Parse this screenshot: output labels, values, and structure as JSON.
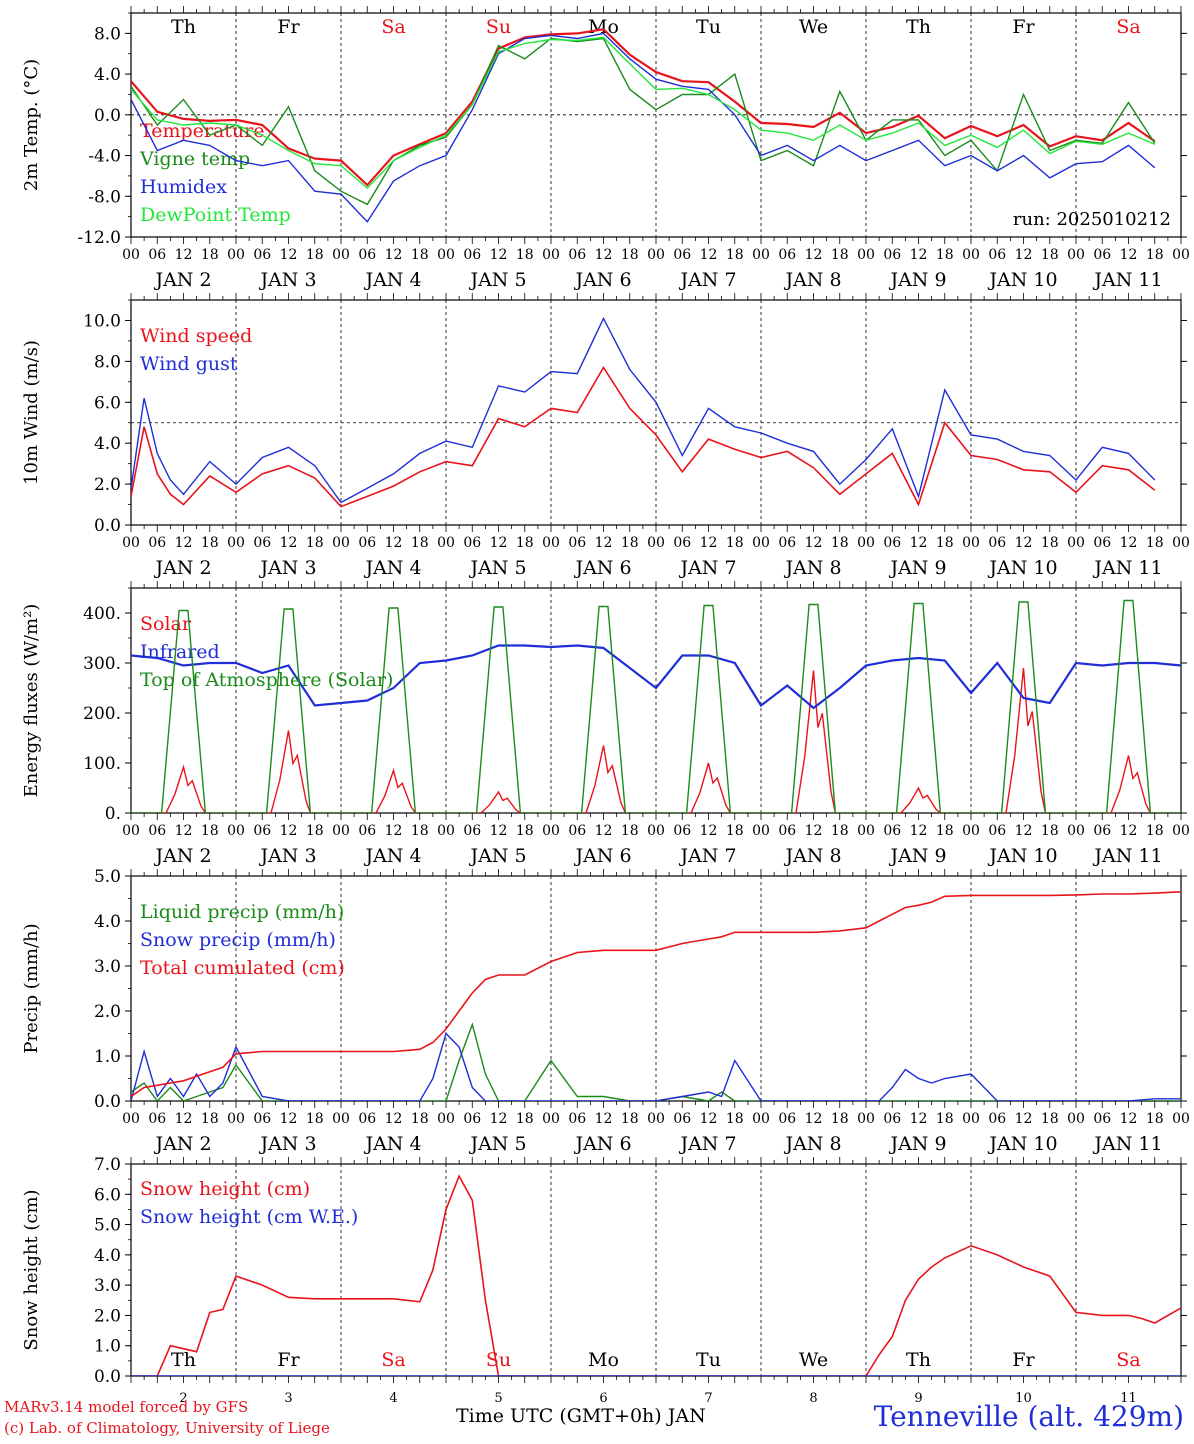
{
  "chart_data": [
    {
      "type": "line",
      "ylabel": "2m Temp. (°C)",
      "ylim": [
        -12,
        10
      ],
      "yticks": [
        "-12.0",
        "-8.0",
        "-4.0",
        "0.0",
        "4.0",
        "8.0"
      ],
      "ytick_values": [
        -12,
        -8,
        -4,
        0,
        4,
        8
      ],
      "ref_line": 0,
      "run_label": "run: 2025010212",
      "x_hours": [
        0,
        6,
        12,
        18,
        24,
        30,
        36,
        42,
        48,
        54,
        60,
        66,
        72,
        78,
        84,
        90,
        96,
        102,
        108,
        114,
        120,
        126,
        132,
        138,
        144,
        150,
        156,
        162,
        168,
        174,
        180,
        186,
        192,
        198,
        204,
        210,
        216,
        222,
        228,
        234
      ],
      "series": [
        {
          "name": "Temperature",
          "color": "#e8141c",
          "width": 2.2,
          "values": [
            3.3,
            0.3,
            -0.4,
            -0.6,
            -0.5,
            -1.0,
            -3.3,
            -4.3,
            -4.5,
            -6.9,
            -4.0,
            -2.9,
            -1.8,
            1.3,
            6.5,
            7.6,
            7.9,
            8.0,
            8.4,
            5.9,
            4.2,
            3.3,
            3.2,
            1.3,
            -0.8,
            -0.9,
            -1.2,
            0.2,
            -1.8,
            -1.2,
            -0.1,
            -2.3,
            -1.1,
            -2.1,
            -1.0,
            -3.1,
            -2.1,
            -2.5,
            -0.8,
            -2.6
          ]
        },
        {
          "name": "Vigne temp",
          "color": "#1b8b1b",
          "width": 1.4,
          "values": [
            2.8,
            -1.0,
            1.5,
            -2.0,
            -1.0,
            -3.0,
            0.8,
            -5.5,
            -7.5,
            -8.8,
            -4.5,
            -3.0,
            -2.2,
            1.0,
            6.8,
            5.5,
            7.5,
            7.2,
            7.5,
            2.5,
            0.5,
            2.0,
            2.0,
            4.0,
            -4.5,
            -3.5,
            -5.0,
            2.3,
            -2.5,
            -0.5,
            -0.5,
            -4.0,
            -2.5,
            -5.5,
            2.0,
            -3.5,
            -2.5,
            -2.8,
            1.2,
            -2.8
          ]
        },
        {
          "name": "Humidex",
          "color": "#1f2ed6",
          "width": 1.4,
          "values": [
            1.5,
            -3.5,
            -2.5,
            -3.0,
            -4.5,
            -5.0,
            -4.5,
            -7.5,
            -7.8,
            -10.5,
            -6.5,
            -5.0,
            -4.0,
            0.5,
            6.0,
            7.5,
            7.8,
            7.5,
            8.0,
            5.5,
            3.5,
            2.8,
            2.5,
            0.0,
            -4.0,
            -3.0,
            -4.5,
            -3.0,
            -4.5,
            -3.5,
            -2.5,
            -5.0,
            -4.0,
            -5.5,
            -4.0,
            -6.2,
            -4.8,
            -4.6,
            -3.0,
            -5.2
          ]
        },
        {
          "name": "DewPoint Temp",
          "color": "#22e63a",
          "width": 1.4,
          "values": [
            2.5,
            -0.5,
            -1.0,
            -0.8,
            -1.0,
            -2.0,
            -3.5,
            -4.8,
            -5.0,
            -7.2,
            -4.5,
            -3.2,
            -2.0,
            1.0,
            6.2,
            7.0,
            7.4,
            7.3,
            7.6,
            5.0,
            2.5,
            2.6,
            2.0,
            0.5,
            -1.5,
            -1.8,
            -2.5,
            -1.0,
            -2.5,
            -1.8,
            -0.8,
            -3.0,
            -2.0,
            -3.2,
            -1.5,
            -3.8,
            -2.6,
            -2.9,
            -1.8,
            -2.9
          ]
        }
      ]
    },
    {
      "type": "line",
      "ylabel": "10m Wind (m/s)",
      "ylim": [
        0,
        11
      ],
      "yticks": [
        "0.0",
        "2.0",
        "4.0",
        "6.0",
        "8.0",
        "10.0"
      ],
      "ytick_values": [
        0,
        2,
        4,
        6,
        8,
        10
      ],
      "ref_line": 5,
      "x_hours": [
        0,
        3,
        6,
        9,
        12,
        18,
        24,
        30,
        36,
        42,
        48,
        54,
        60,
        66,
        72,
        78,
        84,
        90,
        96,
        102,
        108,
        114,
        120,
        126,
        132,
        138,
        144,
        150,
        156,
        162,
        168,
        174,
        180,
        186,
        192,
        198,
        204,
        210,
        216,
        222,
        228,
        234
      ],
      "series": [
        {
          "name": "Wind speed",
          "color": "#e8141c",
          "width": 1.6,
          "values": [
            1.4,
            4.8,
            2.5,
            1.5,
            1.0,
            2.4,
            1.6,
            2.5,
            2.9,
            2.3,
            0.9,
            1.4,
            1.9,
            2.6,
            3.1,
            2.9,
            5.2,
            4.8,
            5.7,
            5.5,
            7.7,
            5.7,
            4.4,
            2.6,
            4.2,
            3.7,
            3.3,
            3.6,
            2.8,
            1.5,
            2.5,
            3.5,
            1.0,
            5.0,
            3.4,
            3.2,
            2.7,
            2.6,
            1.6,
            2.9,
            2.7,
            1.7
          ]
        },
        {
          "name": "Wind gust",
          "color": "#1f2ed6",
          "width": 1.4,
          "values": [
            1.8,
            6.2,
            3.5,
            2.2,
            1.5,
            3.1,
            2.0,
            3.3,
            3.8,
            2.9,
            1.1,
            1.8,
            2.5,
            3.5,
            4.1,
            3.8,
            6.8,
            6.5,
            7.5,
            7.4,
            10.1,
            7.6,
            6.0,
            3.4,
            5.7,
            4.8,
            4.5,
            4.0,
            3.6,
            2.0,
            3.2,
            4.7,
            1.4,
            6.6,
            4.4,
            4.2,
            3.6,
            3.4,
            2.2,
            3.8,
            3.5,
            2.2
          ]
        }
      ]
    },
    {
      "type": "line",
      "ylabel": "Energy fluxes (W/m²)",
      "ylim": [
        0,
        450
      ],
      "yticks": [
        "0.",
        "100.",
        "200.",
        "300.",
        "400."
      ],
      "ytick_values": [
        0,
        100,
        200,
        300,
        400
      ],
      "diurnal_peaks_toa": [
        405,
        408,
        410,
        412,
        413,
        415,
        417,
        419,
        422,
        425,
        428
      ],
      "diurnal_peaks_solar": [
        92,
        165,
        85,
        42,
        135,
        100,
        285,
        50,
        290,
        115
      ],
      "series": [
        {
          "name": "Solar",
          "color": "#e8141c",
          "width": 1.4
        },
        {
          "name": "Infrared",
          "color": "#1f2ed6",
          "width": 2.2,
          "x_hours": [
            0,
            6,
            12,
            18,
            24,
            30,
            36,
            42,
            48,
            54,
            60,
            66,
            72,
            78,
            84,
            90,
            96,
            102,
            108,
            114,
            120,
            126,
            132,
            138,
            144,
            150,
            156,
            162,
            168,
            174,
            180,
            186,
            192,
            198,
            204,
            210,
            216,
            222,
            228,
            234,
            240
          ],
          "values": [
            315,
            310,
            295,
            300,
            300,
            280,
            295,
            215,
            220,
            225,
            250,
            300,
            305,
            315,
            335,
            335,
            332,
            335,
            330,
            290,
            250,
            315,
            315,
            300,
            215,
            255,
            210,
            250,
            295,
            305,
            310,
            305,
            240,
            300,
            230,
            220,
            300,
            295,
            300,
            300,
            295
          ]
        },
        {
          "name": "Top of Atmosphere (Solar)",
          "color": "#1b8b1b",
          "width": 1.4
        }
      ]
    },
    {
      "type": "line",
      "ylabel": "Precip (mm/h)",
      "ylim": [
        0,
        5
      ],
      "yticks": [
        "0.0",
        "1.0",
        "2.0",
        "3.0",
        "4.0",
        "5.0"
      ],
      "ytick_values": [
        0,
        1,
        2,
        3,
        4,
        5
      ],
      "x_hours": [
        0,
        3,
        6,
        9,
        12,
        15,
        18,
        21,
        24,
        30,
        36,
        42,
        48,
        54,
        60,
        66,
        69,
        72,
        75,
        78,
        81,
        84,
        90,
        96,
        102,
        108,
        114,
        120,
        126,
        132,
        135,
        138,
        144,
        150,
        156,
        162,
        168,
        171,
        174,
        177,
        180,
        183,
        186,
        192,
        198,
        204,
        210,
        216,
        222,
        228,
        234,
        240
      ],
      "series": [
        {
          "name": "Liquid precip (mm/h)",
          "color": "#1b8b1b",
          "width": 1.4,
          "values": [
            0.2,
            0.4,
            0.0,
            0.3,
            0.0,
            0.1,
            0.2,
            0.3,
            0.8,
            0.0,
            0.0,
            0.0,
            0.0,
            0.0,
            0.0,
            0.0,
            0.0,
            0.0,
            0.9,
            1.7,
            0.6,
            0.0,
            0.0,
            0.9,
            0.1,
            0.1,
            0.0,
            0.0,
            0.1,
            0.0,
            0.2,
            0.0,
            0.0,
            0.0,
            0.0,
            0.0,
            0.0,
            0.0,
            0.0,
            0.0,
            0.0,
            0.0,
            0.0,
            0.0,
            0.0,
            0.0,
            0.0,
            0.0,
            0.0,
            0.0,
            0.0,
            0.0
          ]
        },
        {
          "name": "Snow precip (mm/h)",
          "color": "#1f2ed6",
          "width": 1.4,
          "values": [
            0.0,
            1.1,
            0.1,
            0.5,
            0.1,
            0.6,
            0.1,
            0.4,
            1.2,
            0.1,
            0.0,
            0.0,
            0.0,
            0.0,
            0.0,
            0.0,
            0.5,
            1.5,
            1.2,
            0.3,
            0.0,
            0.0,
            0.0,
            0.0,
            0.0,
            0.0,
            0.0,
            0.0,
            0.1,
            0.2,
            0.1,
            0.9,
            0.0,
            0.0,
            0.0,
            0.0,
            0.0,
            0.0,
            0.3,
            0.7,
            0.5,
            0.4,
            0.5,
            0.6,
            0.0,
            0.0,
            0.0,
            0.0,
            0.0,
            0.0,
            0.05,
            0.05
          ]
        },
        {
          "name": "Total cumulated (cm)",
          "color": "#e8141c",
          "width": 1.6,
          "values": [
            0.1,
            0.3,
            0.35,
            0.4,
            0.45,
            0.55,
            0.65,
            0.75,
            1.05,
            1.1,
            1.1,
            1.1,
            1.1,
            1.1,
            1.1,
            1.15,
            1.3,
            1.6,
            2.0,
            2.4,
            2.7,
            2.8,
            2.8,
            3.1,
            3.3,
            3.35,
            3.35,
            3.35,
            3.5,
            3.6,
            3.65,
            3.75,
            3.75,
            3.75,
            3.75,
            3.78,
            3.85,
            4.0,
            4.15,
            4.3,
            4.35,
            4.42,
            4.55,
            4.57,
            4.57,
            4.57,
            4.57,
            4.58,
            4.6,
            4.6,
            4.62,
            4.65
          ]
        }
      ]
    },
    {
      "type": "line",
      "ylabel": "Snow height (cm)",
      "ylim": [
        0,
        7
      ],
      "yticks": [
        "0.0",
        "1.0",
        "2.0",
        "3.0",
        "4.0",
        "5.0",
        "6.0",
        "7.0"
      ],
      "ytick_values": [
        0,
        1,
        2,
        3,
        4,
        5,
        6,
        7
      ],
      "x_hours": [
        0,
        3,
        6,
        9,
        12,
        15,
        18,
        21,
        24,
        30,
        36,
        42,
        48,
        54,
        60,
        66,
        69,
        72,
        75,
        78,
        81,
        84,
        90,
        96,
        102,
        108,
        114,
        120,
        126,
        132,
        138,
        144,
        150,
        156,
        162,
        168,
        171,
        174,
        177,
        180,
        183,
        186,
        192,
        198,
        204,
        210,
        216,
        222,
        228,
        231,
        234,
        240
      ],
      "series": [
        {
          "name": "Snow height (cm)",
          "color": "#e8141c",
          "width": 1.6,
          "values": [
            0.0,
            0.0,
            0.0,
            1.0,
            0.9,
            0.8,
            2.1,
            2.2,
            3.3,
            3.0,
            2.6,
            2.55,
            2.55,
            2.55,
            2.55,
            2.45,
            3.5,
            5.5,
            6.6,
            5.8,
            2.5,
            0.0,
            0.0,
            0.0,
            0.0,
            0.0,
            0.0,
            0.0,
            0.0,
            0.0,
            0.0,
            0.0,
            0.0,
            0.0,
            0.0,
            0.0,
            0.7,
            1.3,
            2.5,
            3.2,
            3.6,
            3.9,
            4.3,
            4.0,
            3.6,
            3.3,
            2.1,
            2.0,
            2.0,
            1.9,
            1.75,
            2.25
          ]
        },
        {
          "name": "Snow height (cm W.E.)",
          "color": "#1f2ed6",
          "width": 1.4,
          "values": [
            0,
            0,
            0,
            0,
            0,
            0,
            0,
            0,
            0,
            0,
            0,
            0,
            0,
            0,
            0,
            0,
            0,
            0,
            0,
            0,
            0,
            0,
            0,
            0,
            0,
            0,
            0,
            0,
            0,
            0,
            0,
            0,
            0,
            0,
            0,
            0,
            0,
            0,
            0,
            0,
            0,
            0,
            0,
            0,
            0,
            0,
            0,
            0,
            0,
            0,
            0,
            0
          ]
        }
      ]
    }
  ],
  "days": [
    "Th",
    "Fr",
    "Sa",
    "Su",
    "Mo",
    "Tu",
    "We",
    "Th",
    "Fr",
    "Sa"
  ],
  "weekend_color": "#e8141c",
  "weekend_days": [
    "Sa",
    "Su"
  ],
  "hour_ticks": [
    "00",
    "06",
    "12",
    "18"
  ],
  "date_labels": [
    "JAN  2",
    "JAN  3",
    "JAN  4",
    "JAN  5",
    "JAN  6",
    "JAN  7",
    "JAN  8",
    "JAN  9",
    "JAN 10",
    "JAN 11"
  ],
  "bottom_day_numbers": [
    "2",
    "3",
    "4",
    "5",
    "6",
    "7",
    "8",
    "9",
    "10",
    "11"
  ],
  "x_title": "Time UTC (GMT+0h) JAN",
  "footer": {
    "model": "MARv3.14 model forced by GFS",
    "lab": "(c) Lab. of Climatology, University of Liege"
  },
  "station": "Tenneville (alt. 429m)"
}
